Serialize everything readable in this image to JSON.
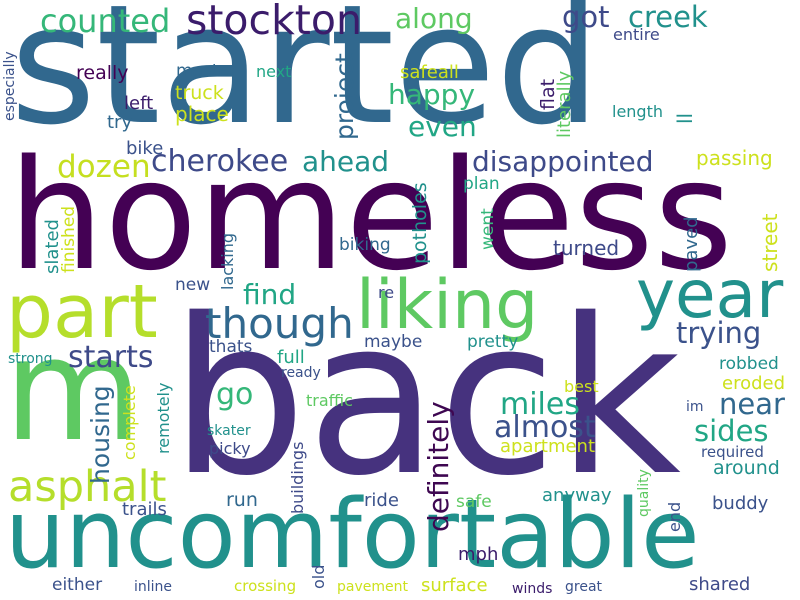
{
  "words": [
    {
      "text": "started",
      "color": "#31688e",
      "vertical": false
    },
    {
      "text": "homeless",
      "color": "#440154",
      "vertical": false
    },
    {
      "text": "back",
      "color": "#46327e",
      "vertical": false
    },
    {
      "text": "uncomfortable",
      "color": "#21918c",
      "vertical": false
    },
    {
      "text": "m",
      "color": "#5ec962",
      "vertical": false
    },
    {
      "text": "part",
      "color": "#b5de2b",
      "vertical": false
    },
    {
      "text": "year",
      "color": "#21918c",
      "vertical": false
    },
    {
      "text": "liking",
      "color": "#5ec962",
      "vertical": false
    },
    {
      "text": "though",
      "color": "#31688e",
      "vertical": false
    },
    {
      "text": "asphalt",
      "color": "#b5de2b",
      "vertical": false
    },
    {
      "text": "stockton",
      "color": "#3b1c6b",
      "vertical": false
    },
    {
      "text": "counted",
      "color": "#35b779",
      "vertical": false
    },
    {
      "text": "along",
      "color": "#5ec962",
      "vertical": false
    },
    {
      "text": "got",
      "color": "#3e4a89",
      "vertical": false
    },
    {
      "text": "creek",
      "color": "#21918c",
      "vertical": false
    },
    {
      "text": "cherokee",
      "color": "#3e4a89",
      "vertical": false
    },
    {
      "text": "ahead",
      "color": "#21918c",
      "vertical": false
    },
    {
      "text": "disappointed",
      "color": "#3e4a89",
      "vertical": false
    },
    {
      "text": "dozen",
      "color": "#c5df20",
      "vertical": false
    },
    {
      "text": "happy",
      "color": "#35b779",
      "vertical": false
    },
    {
      "text": "even",
      "color": "#21a685",
      "vertical": false
    },
    {
      "text": "passing",
      "color": "#cde11d",
      "vertical": false
    },
    {
      "text": "starts",
      "color": "#3e4a89",
      "vertical": false
    },
    {
      "text": "find",
      "color": "#21a685",
      "vertical": false
    },
    {
      "text": "trying",
      "color": "#3b528b",
      "vertical": false
    },
    {
      "text": "go",
      "color": "#35b779",
      "vertical": false
    },
    {
      "text": "miles",
      "color": "#21a685",
      "vertical": false
    },
    {
      "text": "near",
      "color": "#31688e",
      "vertical": false
    },
    {
      "text": "almost",
      "color": "#3b528b",
      "vertical": false
    },
    {
      "text": "sides",
      "color": "#21a685",
      "vertical": false
    },
    {
      "text": "definitely",
      "color": "#3e0751",
      "vertical": true
    },
    {
      "text": "housing",
      "color": "#31688e",
      "vertical": true
    },
    {
      "text": "project",
      "color": "#31688e",
      "vertical": true
    },
    {
      "text": "master",
      "color": "#31688e",
      "vertical": false
    },
    {
      "text": "next",
      "color": "#21a685",
      "vertical": false
    },
    {
      "text": "truck",
      "color": "#cde11d",
      "vertical": false
    },
    {
      "text": "place",
      "color": "#cde11d",
      "vertical": false
    },
    {
      "text": "really",
      "color": "#440154",
      "vertical": false
    },
    {
      "text": "left",
      "color": "#3b1c6b",
      "vertical": false
    },
    {
      "text": "try",
      "color": "#31688e",
      "vertical": false
    },
    {
      "text": "bike",
      "color": "#3b528b",
      "vertical": false
    },
    {
      "text": "safeall",
      "color": "#cde11d",
      "vertical": false
    },
    {
      "text": "flat",
      "color": "#3b1c6b",
      "vertical": true
    },
    {
      "text": "literally",
      "color": "#5ec962",
      "vertical": true
    },
    {
      "text": "length",
      "color": "#21918c",
      "vertical": false
    },
    {
      "text": "ll",
      "color": "#21918c",
      "vertical": true
    },
    {
      "text": "entire",
      "color": "#3e4a89",
      "vertical": false
    },
    {
      "text": "especially",
      "color": "#3b528b",
      "vertical": true
    },
    {
      "text": "slated",
      "color": "#21918c",
      "vertical": true
    },
    {
      "text": "finished",
      "color": "#cde11d",
      "vertical": true
    },
    {
      "text": "lacking",
      "color": "#31688e",
      "vertical": true
    },
    {
      "text": "biking",
      "color": "#31688e",
      "vertical": false
    },
    {
      "text": "potholes",
      "color": "#21918c",
      "vertical": true
    },
    {
      "text": "plan",
      "color": "#21a685",
      "vertical": false
    },
    {
      "text": "went",
      "color": "#35b779",
      "vertical": true
    },
    {
      "text": "turned",
      "color": "#3e4a89",
      "vertical": false
    },
    {
      "text": "paved",
      "color": "#31688e",
      "vertical": true
    },
    {
      "text": "street",
      "color": "#cde11d",
      "vertical": true
    },
    {
      "text": "new",
      "color": "#3b528b",
      "vertical": false
    },
    {
      "text": "re",
      "color": "#3e4a89",
      "vertical": false
    },
    {
      "text": "thats",
      "color": "#3b528b",
      "vertical": false
    },
    {
      "text": "maybe",
      "color": "#3b528b",
      "vertical": false
    },
    {
      "text": "pretty",
      "color": "#21918c",
      "vertical": false
    },
    {
      "text": "full",
      "color": "#21a685",
      "vertical": false
    },
    {
      "text": "strong",
      "color": "#21918c",
      "vertical": false
    },
    {
      "text": "ready",
      "color": "#3b528b",
      "vertical": false
    },
    {
      "text": "remotely",
      "color": "#21918c",
      "vertical": true
    },
    {
      "text": "complete",
      "color": "#cde11d",
      "vertical": true
    },
    {
      "text": "traffic",
      "color": "#5ec962",
      "vertical": false
    },
    {
      "text": "robbed",
      "color": "#21918c",
      "vertical": false
    },
    {
      "text": "eroded",
      "color": "#cde11d",
      "vertical": false
    },
    {
      "text": "best",
      "color": "#cde11d",
      "vertical": false
    },
    {
      "text": "im",
      "color": "#3b528b",
      "vertical": false
    },
    {
      "text": "skater",
      "color": "#21918c",
      "vertical": false
    },
    {
      "text": "picky",
      "color": "#3e4a89",
      "vertical": false
    },
    {
      "text": "buildings",
      "color": "#3e4a89",
      "vertical": true
    },
    {
      "text": "apartment",
      "color": "#cde11d",
      "vertical": false
    },
    {
      "text": "required",
      "color": "#3b528b",
      "vertical": false
    },
    {
      "text": "around",
      "color": "#21918c",
      "vertical": false
    },
    {
      "text": "quality",
      "color": "#5ec962",
      "vertical": true
    },
    {
      "text": "run",
      "color": "#31688e",
      "vertical": false
    },
    {
      "text": "ride",
      "color": "#3b528b",
      "vertical": false
    },
    {
      "text": "safe",
      "color": "#5ec962",
      "vertical": false
    },
    {
      "text": "anyway",
      "color": "#21918c",
      "vertical": false
    },
    {
      "text": "end",
      "color": "#3b528b",
      "vertical": true
    },
    {
      "text": "buddy",
      "color": "#3b528b",
      "vertical": false
    },
    {
      "text": "trails",
      "color": "#3b528b",
      "vertical": false
    },
    {
      "text": "old",
      "color": "#3b528b",
      "vertical": true
    },
    {
      "text": "mph",
      "color": "#3b1c6b",
      "vertical": false
    },
    {
      "text": "either",
      "color": "#3b528b",
      "vertical": false
    },
    {
      "text": "inline",
      "color": "#3b528b",
      "vertical": false
    },
    {
      "text": "crossing",
      "color": "#cde11d",
      "vertical": false
    },
    {
      "text": "pavement",
      "color": "#cde11d",
      "vertical": false
    },
    {
      "text": "surface",
      "color": "#cde11d",
      "vertical": false
    },
    {
      "text": "winds",
      "color": "#3b1c6b",
      "vertical": false
    },
    {
      "text": "great",
      "color": "#3b528b",
      "vertical": false
    },
    {
      "text": "shared",
      "color": "#3e4a89",
      "vertical": false
    }
  ]
}
